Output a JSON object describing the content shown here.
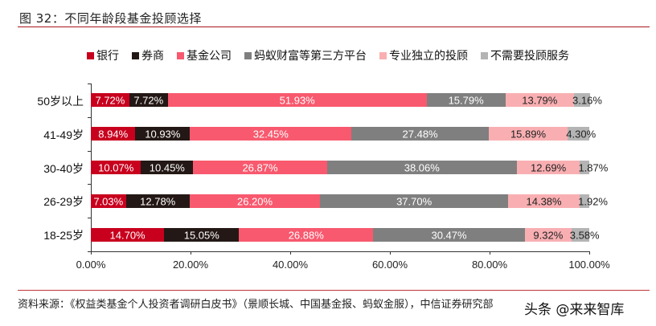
{
  "header": {
    "title": "图 32：不同年龄段基金投顾选择"
  },
  "footer": {
    "source": "资料来源：《权益类基金个人投资者调研白皮书》（景顺长城、中国基金报、蚂蚁金服），中信证券研究部",
    "watermark": "头条 @来来智库"
  },
  "chart_data": {
    "type": "bar",
    "orientation": "horizontal",
    "stacked": true,
    "title": "不同年龄段基金投顾选择",
    "xlabel": "",
    "ylabel": "",
    "xlim": [
      0,
      100
    ],
    "x_ticks": [
      "0.00%",
      "20.00%",
      "40.00%",
      "60.00%",
      "80.00%",
      "100.00%"
    ],
    "grid": false,
    "legend_position": "top",
    "categories": [
      "50岁以上",
      "41-49岁",
      "30-40岁",
      "26-29岁",
      "18-25岁"
    ],
    "series": [
      {
        "name": "银行",
        "color": "#c8001e",
        "label_color": "#ffffff",
        "values": [
          7.72,
          8.94,
          10.07,
          7.03,
          14.7
        ]
      },
      {
        "name": "券商",
        "color": "#231815",
        "label_color": "#ffffff",
        "values": [
          7.72,
          10.93,
          10.45,
          12.78,
          15.05
        ]
      },
      {
        "name": "基金公司",
        "color": "#f8596e",
        "label_color": "#ffffff",
        "values": [
          51.93,
          32.45,
          26.87,
          26.2,
          26.88
        ]
      },
      {
        "name": "蚂蚁财富等第三方平台",
        "color": "#7f7f7f",
        "label_color": "#ffffff",
        "values": [
          15.79,
          27.48,
          38.06,
          37.7,
          30.47
        ]
      },
      {
        "name": "专业独立的投顾",
        "color": "#f9afb2",
        "label_color": "#222222",
        "values": [
          13.79,
          15.89,
          12.69,
          14.38,
          9.32
        ]
      },
      {
        "name": "不需要投顾服务",
        "color": "#b4b4b4",
        "label_color": "#222222",
        "values": [
          3.16,
          4.3,
          1.87,
          1.92,
          3.58
        ]
      }
    ],
    "labels": [
      [
        "7.72%",
        "7.72%",
        "51.93%",
        "15.79%",
        "13.79%",
        "3.16%"
      ],
      [
        "8.94%",
        "10.93%",
        "32.45%",
        "27.48%",
        "15.89%",
        "4.30%"
      ],
      [
        "10.07%",
        "10.45%",
        "26.87%",
        "38.06%",
        "12.69%",
        "1.87%"
      ],
      [
        "7.03%",
        "12.78%",
        "26.20%",
        "37.70%",
        "14.38%",
        "1.92%"
      ],
      [
        "14.70%",
        "15.05%",
        "26.88%",
        "30.47%",
        "9.32%",
        "3.58%"
      ]
    ]
  }
}
